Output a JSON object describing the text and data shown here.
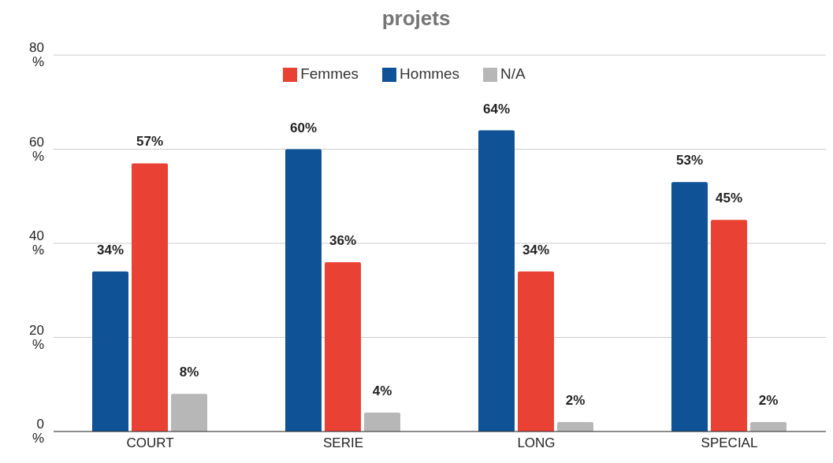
{
  "chart_data": {
    "type": "bar",
    "title": "projets",
    "categories": [
      "COURT",
      "SERIE",
      "LONG",
      "SPECIAL"
    ],
    "series": [
      {
        "name": "Hommes",
        "color": "#0f5295",
        "values": [
          34,
          60,
          64,
          53
        ],
        "value_labels": [
          "34%",
          "60%",
          "64%",
          "53%"
        ]
      },
      {
        "name": "Femmes",
        "color": "#e94235",
        "values": [
          57,
          36,
          34,
          45
        ],
        "value_labels": [
          "57%",
          "36%",
          "34%",
          "45%"
        ]
      },
      {
        "name": "N/A",
        "color": "#b7b7b7",
        "values": [
          8,
          4,
          2,
          2
        ],
        "value_labels": [
          "8%",
          "4%",
          "2%",
          "2%"
        ]
      }
    ],
    "ylim": [
      0,
      80
    ],
    "yticks": [
      {
        "value": 0,
        "label": "0 %"
      },
      {
        "value": 20,
        "label": "20 %"
      },
      {
        "value": 40,
        "label": "40 %"
      },
      {
        "value": 60,
        "label": "60 %"
      },
      {
        "value": 80,
        "label": "80 %"
      }
    ],
    "grid": "y",
    "legend": "top"
  }
}
